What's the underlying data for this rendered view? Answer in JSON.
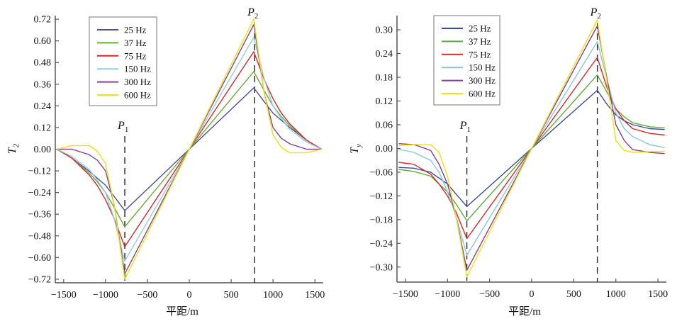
{
  "chart_data": [
    {
      "type": "line",
      "ylabel": "T",
      "ylabel_sub": "2",
      "xlabel": "平距/m",
      "xlim": [
        -1600,
        1600
      ],
      "ylim": [
        -0.74,
        0.74
      ],
      "xticks": [
        -1500,
        -1000,
        -500,
        0,
        500,
        1000,
        1500
      ],
      "xtick_labels": [
        "−1500",
        "−1000",
        "−500",
        "0",
        "500",
        "1000",
        "1500"
      ],
      "yticks": [
        0.72,
        0.6,
        0.48,
        0.36,
        0.24,
        0.12,
        0.0,
        -0.12,
        -0.24,
        -0.36,
        -0.48,
        -0.6,
        -0.72
      ],
      "ytick_labels": [
        "0.72",
        "0.60",
        "0.48",
        "0.36",
        "0.24",
        "0.12",
        "0.00",
        "−0.12",
        "−0.24",
        "−0.36",
        "−0.48",
        "−0.60",
        "−0.72"
      ],
      "legend_position": "top-left",
      "markers": [
        {
          "label": "P",
          "sub": "1",
          "x": -770
        },
        {
          "label": "P",
          "sub": "2",
          "x": 780
        }
      ],
      "x": [
        -1580,
        -1400,
        -1200,
        -1100,
        -1000,
        -900,
        -770,
        0,
        770,
        900,
        1000,
        1100,
        1200,
        1400,
        1580
      ],
      "series": [
        {
          "name": "25 Hz",
          "color": "#4b4ba8",
          "values": [
            0,
            -0.05,
            -0.12,
            -0.16,
            -0.2,
            -0.26,
            -0.34,
            0,
            0.34,
            0.26,
            0.2,
            0.16,
            0.12,
            0.05,
            0
          ]
        },
        {
          "name": "37 Hz",
          "color": "#68b034",
          "values": [
            0,
            -0.05,
            -0.13,
            -0.18,
            -0.24,
            -0.32,
            -0.43,
            0,
            0.43,
            0.32,
            0.24,
            0.18,
            0.13,
            0.05,
            0
          ]
        },
        {
          "name": "75 Hz",
          "color": "#e82222",
          "values": [
            0,
            -0.05,
            -0.14,
            -0.2,
            -0.28,
            -0.38,
            -0.54,
            0,
            0.54,
            0.38,
            0.28,
            0.2,
            0.14,
            0.05,
            0
          ]
        },
        {
          "name": "150 Hz",
          "color": "#8ccfe8",
          "values": [
            0,
            -0.04,
            -0.11,
            -0.17,
            -0.24,
            -0.38,
            -0.62,
            0,
            0.62,
            0.38,
            0.24,
            0.17,
            0.11,
            0.04,
            0
          ]
        },
        {
          "name": "300 Hz",
          "color": "#8a40a2",
          "values": [
            0,
            0.0,
            -0.03,
            -0.06,
            -0.12,
            -0.3,
            -0.69,
            0,
            0.69,
            0.3,
            0.12,
            0.06,
            0.03,
            0.0,
            0
          ]
        },
        {
          "name": "600 Hz",
          "color": "#f0e400",
          "values": [
            0,
            0.02,
            0.02,
            -0.01,
            -0.08,
            -0.3,
            -0.72,
            0,
            0.72,
            0.3,
            0.08,
            0.01,
            -0.02,
            -0.02,
            0
          ]
        }
      ]
    },
    {
      "type": "line",
      "ylabel": "T",
      "ylabel_sub": "y",
      "xlabel": "平距/m",
      "xlim": [
        -1600,
        1600
      ],
      "ylim": [
        -0.338,
        0.336
      ],
      "xticks": [
        -1500,
        -1000,
        -500,
        0,
        500,
        1000,
        1500
      ],
      "xtick_labels": [
        "−1500",
        "−1000",
        "−500",
        "0",
        "500",
        "1000",
        "1500"
      ],
      "yticks": [
        0.3,
        0.24,
        0.18,
        0.12,
        0.06,
        0.0,
        -0.06,
        -0.12,
        -0.18,
        -0.24,
        -0.3
      ],
      "ytick_labels": [
        "0.30",
        "0.24",
        "0.18",
        "0.12",
        "0.06",
        "0.00",
        "−0.06",
        "−0.12",
        "−0.18",
        "−0.24",
        "−0.30"
      ],
      "legend_position": "top-left",
      "markers": [
        {
          "label": "P",
          "sub": "1",
          "x": -770
        },
        {
          "label": "P",
          "sub": "2",
          "x": 780
        }
      ],
      "x": [
        -1580,
        -1400,
        -1200,
        -1100,
        -1000,
        -900,
        -770,
        0,
        780,
        900,
        1000,
        1100,
        1200,
        1400,
        1580
      ],
      "series": [
        {
          "name": "25 Hz",
          "color": "#3a48a8",
          "values": [
            -0.048,
            -0.05,
            -0.06,
            -0.075,
            -0.09,
            -0.115,
            -0.147,
            0,
            0.147,
            0.11,
            0.085,
            0.07,
            0.06,
            0.05,
            0.048
          ]
        },
        {
          "name": "37 Hz",
          "color": "#58b030",
          "values": [
            -0.053,
            -0.058,
            -0.07,
            -0.09,
            -0.11,
            -0.14,
            -0.183,
            0,
            0.186,
            0.14,
            0.1,
            0.08,
            0.065,
            0.055,
            0.052
          ]
        },
        {
          "name": "75 Hz",
          "color": "#e82222",
          "values": [
            -0.035,
            -0.04,
            -0.065,
            -0.09,
            -0.12,
            -0.16,
            -0.228,
            0,
            0.23,
            0.15,
            0.1,
            0.07,
            0.05,
            0.038,
            0.034
          ]
        },
        {
          "name": "150 Hz",
          "color": "#7fcae6",
          "values": [
            -0.002,
            -0.01,
            -0.03,
            -0.06,
            -0.11,
            -0.17,
            -0.27,
            0,
            0.27,
            0.17,
            0.09,
            0.05,
            0.03,
            0.01,
            0.002
          ]
        },
        {
          "name": "300 Hz",
          "color": "#8a3aa0",
          "values": [
            0.012,
            0.01,
            -0.005,
            -0.04,
            -0.09,
            -0.17,
            -0.308,
            0,
            0.31,
            0.17,
            0.06,
            0.02,
            -0.003,
            -0.01,
            -0.013
          ]
        },
        {
          "name": "600 Hz",
          "color": "#f2e400",
          "values": [
            0.007,
            0.01,
            0.01,
            -0.01,
            -0.07,
            -0.17,
            -0.325,
            0,
            0.325,
            0.16,
            0.02,
            -0.005,
            -0.01,
            -0.008,
            -0.007
          ]
        }
      ]
    }
  ]
}
